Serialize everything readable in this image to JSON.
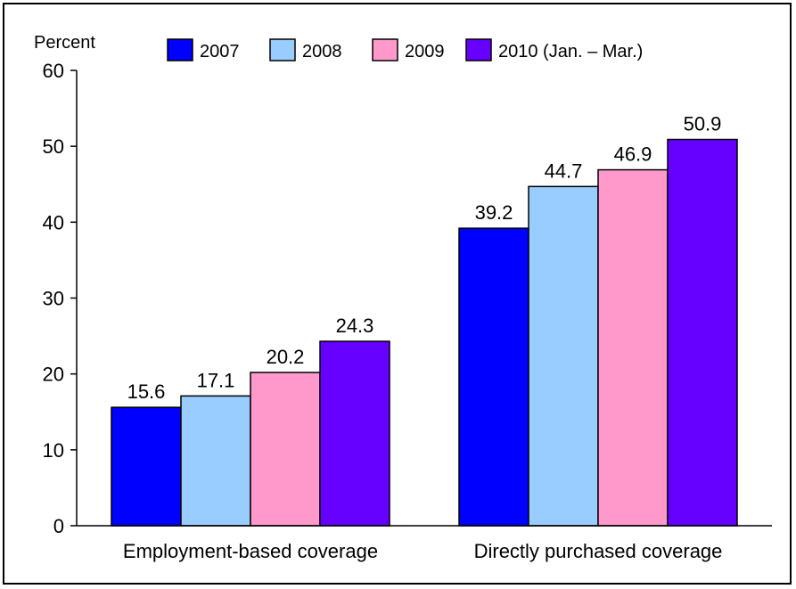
{
  "chart_data": {
    "type": "bar",
    "title": "",
    "xlabel": "",
    "ylabel": "Percent",
    "ylim": [
      0,
      60
    ],
    "yticks": [
      0,
      10,
      20,
      30,
      40,
      50,
      60
    ],
    "grid": false,
    "legend_position": "top",
    "categories": [
      "Employment-based coverage",
      "Directly purchased coverage"
    ],
    "series": [
      {
        "name": "2007",
        "color": "#0000ff",
        "values": [
          15.6,
          39.2
        ],
        "labels": [
          "15.6",
          "39.2"
        ]
      },
      {
        "name": "2008",
        "color": "#99ccff",
        "values": [
          17.1,
          44.7
        ],
        "labels": [
          "17.1",
          "44.7"
        ]
      },
      {
        "name": "2009",
        "color": "#ff99cc",
        "values": [
          20.2,
          46.9
        ],
        "labels": [
          "20.2",
          "46.9"
        ]
      },
      {
        "name": "2010 (Jan. – Mar.)",
        "color": "#6600ff",
        "values": [
          24.3,
          50.9
        ],
        "labels": [
          "24.3",
          "50.9"
        ]
      }
    ]
  }
}
